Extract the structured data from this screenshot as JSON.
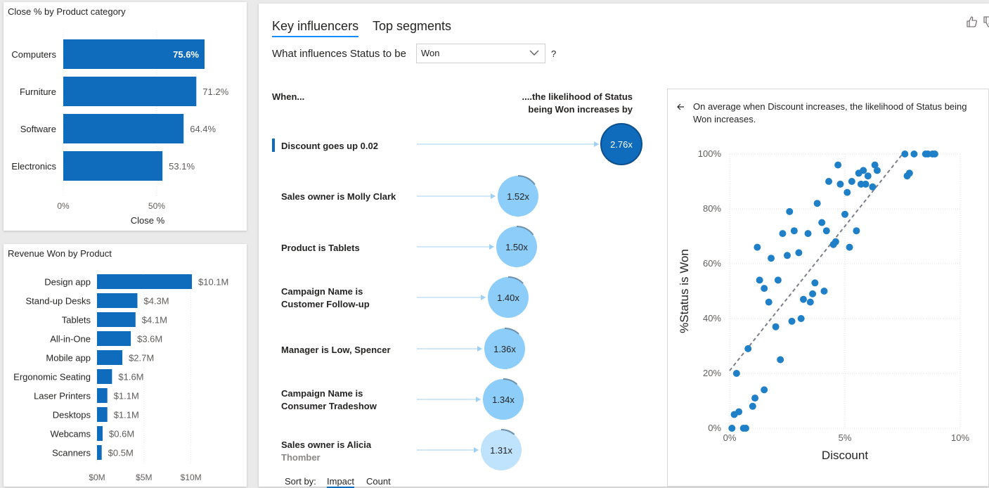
{
  "close_chart": {
    "title": "Close % by Product category",
    "xlabel": "Close %",
    "ticks": [
      "0%",
      "50%"
    ]
  },
  "revenue_chart": {
    "title": "Revenue Won by Product",
    "ticks": [
      "$0M",
      "$5M",
      "$10M"
    ]
  },
  "ki": {
    "tabs": [
      "Key influencers",
      "Top segments"
    ],
    "question_prefix": "What influences Status to be",
    "selected_value": "Won",
    "question_suffix": "?",
    "when_header": "When...",
    "likelihood_header": "....the likelihood of Status being Won increases by",
    "influencers": [
      {
        "label": "Discount goes up 0.02",
        "value": "2.76x",
        "factor": 2.76
      },
      {
        "label": "Sales owner is Molly Clark",
        "value": "1.52x",
        "factor": 1.52
      },
      {
        "label": "Product is Tablets",
        "value": "1.50x",
        "factor": 1.5
      },
      {
        "label": "Campaign Name is Customer Follow-up",
        "value": "1.40x",
        "factor": 1.4
      },
      {
        "label": "Manager is Low, Spencer",
        "value": "1.36x",
        "factor": 1.36
      },
      {
        "label": "Campaign Name is Consumer Tradeshow",
        "value": "1.34x",
        "factor": 1.34
      },
      {
        "label": "Sales owner is Alicia",
        "label_faded": "Thomber",
        "value": "1.31x",
        "factor": 1.31
      }
    ],
    "sort_label": "Sort by:",
    "sort_options": [
      "Impact",
      "Count"
    ],
    "detail_text": "On average when Discount increases, the likelihood of Status being Won increases.",
    "back_icon": "back-arrow-icon",
    "like_icon": "thumbs-up-icon"
  },
  "chart_data": [
    {
      "type": "bar",
      "orientation": "horizontal",
      "title": "Close % by Product category",
      "xlabel": "Close %",
      "categories": [
        "Computers",
        "Furniture",
        "Software",
        "Electronics"
      ],
      "values": [
        75.6,
        71.2,
        64.4,
        53.1
      ],
      "data_labels": [
        "75.6%",
        "71.2%",
        "64.4%",
        "53.1%"
      ],
      "xlim": [
        0,
        75.6
      ],
      "color": "#0f6cbd"
    },
    {
      "type": "bar",
      "orientation": "horizontal",
      "title": "Revenue Won by Product",
      "categories": [
        "Design app",
        "Stand-up Desks",
        "Tablets",
        "All-in-One",
        "Mobile app",
        "Ergonomic Seating",
        "Laser Printers",
        "Desktops",
        "Webcams",
        "Scanners"
      ],
      "values": [
        10.1,
        4.3,
        4.1,
        3.6,
        2.7,
        1.6,
        1.1,
        1.1,
        0.6,
        0.5
      ],
      "data_labels": [
        "$10.1M",
        "$4.3M",
        "$4.1M",
        "$3.6M",
        "$2.7M",
        "$1.6M",
        "$1.1M",
        "$1.1M",
        "$0.6M",
        "$0.5M"
      ],
      "xlim": [
        0,
        10.1
      ],
      "color": "#0f6cbd"
    },
    {
      "type": "scatter",
      "xlabel": "Discount",
      "ylabel": "%Status is Won",
      "xlim": [
        0,
        10
      ],
      "ylim": [
        0,
        100
      ],
      "xticks": [
        "0%",
        "5%",
        "10%"
      ],
      "yticks": [
        "0%",
        "20%",
        "40%",
        "60%",
        "80%",
        "100%"
      ],
      "trendline": [
        [
          0,
          21
        ],
        [
          7.5,
          100
        ]
      ],
      "color": "#1f80c8",
      "points": [
        [
          0.1,
          0
        ],
        [
          0.2,
          5
        ],
        [
          0.4,
          6
        ],
        [
          0.6,
          0
        ],
        [
          0.7,
          0
        ],
        [
          0.3,
          20
        ],
        [
          0.8,
          29
        ],
        [
          1.0,
          8
        ],
        [
          1.1,
          11
        ],
        [
          1.5,
          14
        ],
        [
          1.2,
          66
        ],
        [
          1.3,
          54
        ],
        [
          1.5,
          51
        ],
        [
          1.7,
          46
        ],
        [
          1.8,
          62
        ],
        [
          2.0,
          37
        ],
        [
          2.1,
          54
        ],
        [
          2.2,
          25
        ],
        [
          2.3,
          71
        ],
        [
          2.5,
          63
        ],
        [
          2.6,
          79
        ],
        [
          2.7,
          39
        ],
        [
          2.8,
          72
        ],
        [
          3.0,
          64
        ],
        [
          3.1,
          40
        ],
        [
          3.2,
          47
        ],
        [
          3.4,
          71
        ],
        [
          3.5,
          46
        ],
        [
          3.6,
          49
        ],
        [
          3.7,
          53
        ],
        [
          3.8,
          82
        ],
        [
          4.0,
          75
        ],
        [
          4.1,
          50
        ],
        [
          4.2,
          72
        ],
        [
          4.3,
          90
        ],
        [
          4.5,
          67
        ],
        [
          4.6,
          68
        ],
        [
          4.7,
          96
        ],
        [
          4.8,
          89
        ],
        [
          5.0,
          78
        ],
        [
          5.1,
          86
        ],
        [
          5.2,
          66
        ],
        [
          5.3,
          90
        ],
        [
          5.5,
          72
        ],
        [
          5.6,
          93
        ],
        [
          5.7,
          89
        ],
        [
          5.8,
          94
        ],
        [
          5.9,
          89
        ],
        [
          6.0,
          92
        ],
        [
          6.2,
          88
        ],
        [
          6.3,
          96
        ],
        [
          6.4,
          94
        ],
        [
          7.6,
          100
        ],
        [
          7.7,
          92
        ],
        [
          7.8,
          93
        ],
        [
          8.0,
          100
        ],
        [
          8.5,
          100
        ],
        [
          8.6,
          100
        ],
        [
          8.8,
          100
        ],
        [
          8.9,
          100
        ]
      ]
    }
  ]
}
